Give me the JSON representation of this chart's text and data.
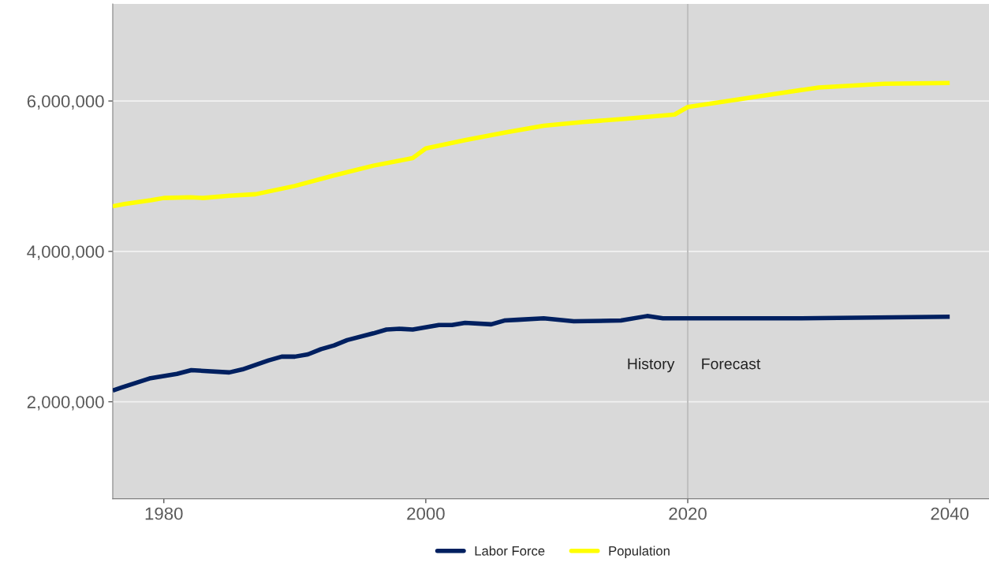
{
  "chart_data": {
    "type": "line",
    "xlim": [
      1976.1,
      2043
    ],
    "xticks": [
      1980,
      2000,
      2020,
      2040
    ],
    "ylim": [
      710000,
      7290000
    ],
    "yticks": [
      {
        "value": 2000000,
        "label": "2,000,000"
      },
      {
        "value": 4000000,
        "label": "4,000,000"
      },
      {
        "value": 6000000,
        "label": "6,000,000"
      }
    ],
    "grid": "y",
    "legend": "bottom",
    "line_style": "solid",
    "marker": "none",
    "series": [
      {
        "name": "Labor Force",
        "color": "#002060",
        "x": [
          1976.1,
          1976.8,
          1978.9,
          1981,
          1982.1,
          1985,
          1986,
          1988,
          1989,
          1990,
          1991,
          1992,
          1993,
          1994,
          1996,
          1997,
          1998,
          1999,
          2001,
          2002,
          2003,
          2005,
          2006,
          2007,
          2009,
          2011.3,
          2014.9,
          2016.9,
          2018.1,
          2020,
          2028.4,
          2040
        ],
        "values": [
          2150000,
          2190000,
          2310000,
          2370000,
          2420000,
          2390000,
          2430000,
          2550000,
          2600000,
          2600000,
          2630000,
          2700000,
          2750000,
          2820000,
          2910000,
          2960000,
          2970000,
          2960000,
          3020000,
          3020000,
          3050000,
          3030000,
          3080000,
          3090000,
          3110000,
          3070000,
          3080000,
          3140000,
          3110000,
          3110000,
          3110000,
          3130000
        ]
      },
      {
        "name": "Population",
        "color": "#ffff00",
        "x": [
          1976.1,
          1977,
          1979,
          1980,
          1982,
          1983,
          1985,
          1987,
          1990,
          1993,
          1996,
          1999,
          2000,
          2003,
          2006,
          2009,
          2012,
          2015,
          2019,
          2020,
          2024.6,
          2030,
          2035,
          2040
        ],
        "values": [
          4600000,
          4630000,
          4680000,
          4710000,
          4720000,
          4710000,
          4740000,
          4760000,
          4870000,
          5010000,
          5140000,
          5240000,
          5370000,
          5480000,
          5580000,
          5670000,
          5720000,
          5760000,
          5820000,
          5920000,
          6040000,
          6180000,
          6230000,
          6240000
        ]
      }
    ],
    "ref_lines": [
      {
        "axis": "x",
        "value": 2020,
        "color": "#bfbfbf"
      }
    ],
    "annotations": [
      "History",
      "Forecast"
    ]
  }
}
